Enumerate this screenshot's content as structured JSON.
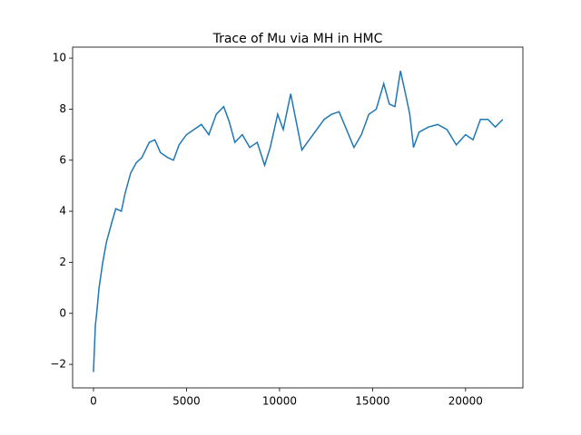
{
  "chart_data": {
    "type": "line",
    "title": "Trace of Mu via MH in HMC",
    "color": "#1f77b4",
    "x": [
      0,
      100,
      200,
      300,
      500,
      700,
      1000,
      1200,
      1500,
      1700,
      2000,
      2300,
      2600,
      3000,
      3300,
      3600,
      4000,
      4300,
      4600,
      5000,
      5400,
      5800,
      6200,
      6600,
      7000,
      7300,
      7600,
      8000,
      8400,
      8800,
      9200,
      9500,
      9900,
      10200,
      10600,
      10900,
      11200,
      11600,
      12000,
      12400,
      12800,
      13200,
      13600,
      14000,
      14400,
      14800,
      15200,
      15600,
      15900,
      16200,
      16500,
      16800,
      17000,
      17200,
      17500,
      18000,
      18500,
      19000,
      19500,
      20000,
      20400,
      20800,
      21200,
      21600,
      22000
    ],
    "values": [
      -2.3,
      -0.5,
      0.2,
      1.0,
      2.0,
      2.8,
      3.6,
      4.1,
      4.0,
      4.7,
      5.5,
      5.9,
      6.1,
      6.7,
      6.8,
      6.3,
      6.1,
      6.0,
      6.6,
      7.0,
      7.2,
      7.4,
      7.0,
      7.8,
      8.1,
      7.5,
      6.7,
      7.0,
      6.5,
      6.7,
      5.8,
      6.5,
      7.8,
      7.2,
      8.6,
      7.5,
      6.4,
      6.8,
      7.2,
      7.6,
      7.8,
      7.9,
      7.2,
      6.5,
      7.0,
      7.8,
      8.0,
      9.0,
      8.2,
      8.1,
      9.5,
      8.5,
      7.8,
      6.5,
      7.1,
      7.3,
      7.4,
      7.2,
      6.6,
      7.0,
      6.8,
      7.6,
      7.6,
      7.3,
      7.6
    ],
    "xlim": [
      -1120,
      23080
    ],
    "ylim": [
      -2.92,
      10.43
    ],
    "xticks": [
      0,
      5000,
      10000,
      15000,
      20000
    ],
    "yticks": [
      {
        "value": -2,
        "label": "−2"
      },
      0,
      2,
      4,
      6,
      8,
      10
    ]
  }
}
